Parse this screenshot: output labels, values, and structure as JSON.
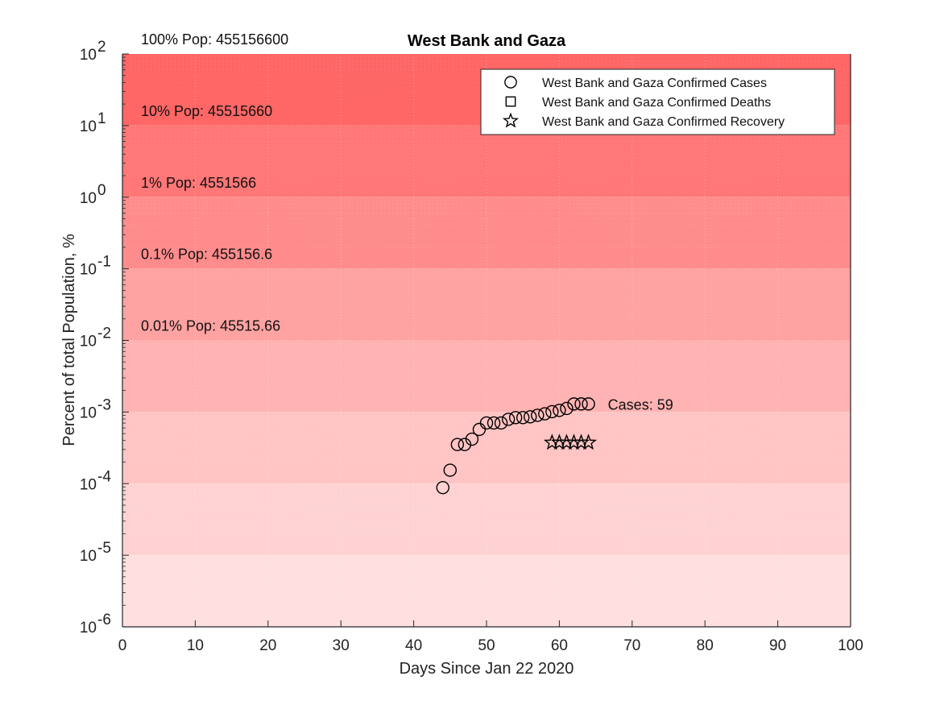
{
  "chart_data": {
    "type": "scatter",
    "title": "West Bank and Gaza",
    "xlabel": "Days Since Jan 22 2020",
    "ylabel": "Percent of total Population, %",
    "xlim": [
      0,
      100
    ],
    "ylim": [
      1e-06,
      100
    ],
    "yscale": "log",
    "x_ticks": [
      "0",
      "10",
      "20",
      "30",
      "40",
      "50",
      "60",
      "70",
      "80",
      "90",
      "100"
    ],
    "y_ticks": [
      {
        "base": "10",
        "exp": "-6"
      },
      {
        "base": "10",
        "exp": "-5"
      },
      {
        "base": "10",
        "exp": "-4"
      },
      {
        "base": "10",
        "exp": "-3"
      },
      {
        "base": "10",
        "exp": "-2"
      },
      {
        "base": "10",
        "exp": "-1"
      },
      {
        "base": "10",
        "exp": "0"
      },
      {
        "base": "10",
        "exp": "1"
      },
      {
        "base": "10",
        "exp": "2"
      }
    ],
    "grid": true,
    "legend_position": "top-right",
    "bands": [
      {
        "lower": 10,
        "upper": 100,
        "color": "#ff6666",
        "label": "100% Pop: 455156600"
      },
      {
        "lower": 1,
        "upper": 10,
        "color": "#ff7777",
        "label": "10% Pop: 45515660"
      },
      {
        "lower": 0.1,
        "upper": 1,
        "color": "#ff8c8c",
        "label": "1% Pop: 4551566"
      },
      {
        "lower": 0.01,
        "upper": 0.1,
        "color": "#ffa2a2",
        "label": "0.1% Pop: 455156.6"
      },
      {
        "lower": 0.001,
        "upper": 0.01,
        "color": "#ffb3b3",
        "label": "0.01% Pop: 45515.66"
      },
      {
        "lower": 0.0001,
        "upper": 0.001,
        "color": "#ffc4c4",
        "label": ""
      },
      {
        "lower": 1e-05,
        "upper": 0.0001,
        "color": "#ffd2d2",
        "label": ""
      },
      {
        "lower": 1e-06,
        "upper": 1e-05,
        "color": "#ffdfdf",
        "label": ""
      }
    ],
    "series": [
      {
        "name": "West Bank and Gaza Confirmed Cases",
        "marker": "circle",
        "x": [
          44,
          45,
          46,
          47,
          48,
          49,
          50,
          51,
          52,
          53,
          54,
          55,
          56,
          57,
          58,
          59,
          60,
          61,
          62,
          63,
          64
        ],
        "y": [
          8.8e-05,
          0.000154,
          0.000352,
          0.000352,
          0.000418,
          0.000571,
          0.000703,
          0.000703,
          0.000703,
          0.000791,
          0.000835,
          0.000835,
          0.000857,
          0.000901,
          0.000945,
          0.001011,
          0.001055,
          0.001121,
          0.001296,
          0.001296,
          0.001296
        ]
      },
      {
        "name": "West Bank and Gaza Confirmed Deaths",
        "marker": "square",
        "x": [],
        "y": []
      },
      {
        "name": "West Bank and Gaza Confirmed Recovery",
        "marker": "star",
        "x": [
          59,
          60,
          61,
          62,
          63,
          64
        ],
        "y": [
          0.000374,
          0.000374,
          0.000374,
          0.000374,
          0.000374,
          0.000374
        ]
      }
    ],
    "annotation": {
      "text": "Cases: 59",
      "x": 67,
      "y": 0.001296
    }
  }
}
